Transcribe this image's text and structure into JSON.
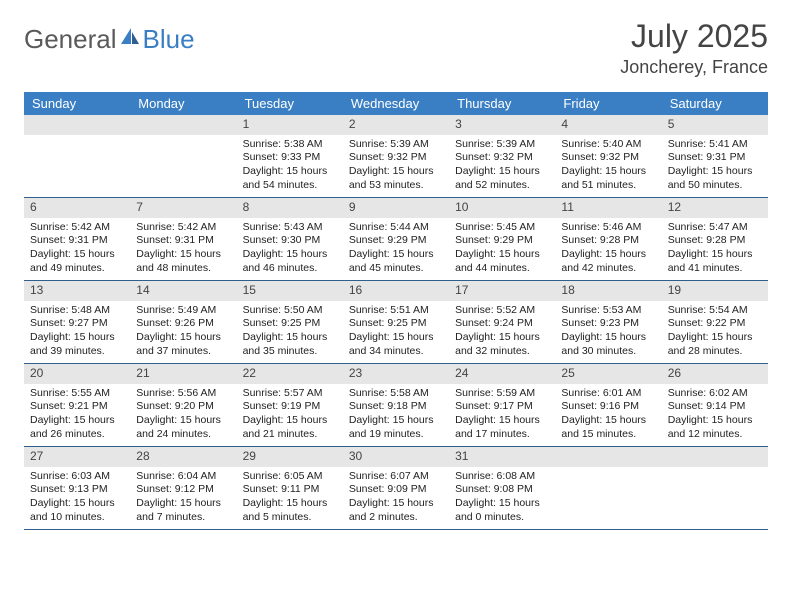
{
  "logo": {
    "text1": "General",
    "text2": "Blue"
  },
  "title": "July 2025",
  "location": "Joncherey, France",
  "colors": {
    "header_bg": "#3a7fc4",
    "row_border": "#2e5f8f",
    "daynum_bg": "#e6e6e6",
    "logo_gray": "#5a5a5a",
    "logo_blue": "#3a7fc4",
    "text": "#222222"
  },
  "day_labels": [
    "Sunday",
    "Monday",
    "Tuesday",
    "Wednesday",
    "Thursday",
    "Friday",
    "Saturday"
  ],
  "weeks": [
    [
      {
        "n": "",
        "sr": "",
        "ss": "",
        "dl": ""
      },
      {
        "n": "",
        "sr": "",
        "ss": "",
        "dl": ""
      },
      {
        "n": "1",
        "sr": "Sunrise: 5:38 AM",
        "ss": "Sunset: 9:33 PM",
        "dl": "Daylight: 15 hours and 54 minutes."
      },
      {
        "n": "2",
        "sr": "Sunrise: 5:39 AM",
        "ss": "Sunset: 9:32 PM",
        "dl": "Daylight: 15 hours and 53 minutes."
      },
      {
        "n": "3",
        "sr": "Sunrise: 5:39 AM",
        "ss": "Sunset: 9:32 PM",
        "dl": "Daylight: 15 hours and 52 minutes."
      },
      {
        "n": "4",
        "sr": "Sunrise: 5:40 AM",
        "ss": "Sunset: 9:32 PM",
        "dl": "Daylight: 15 hours and 51 minutes."
      },
      {
        "n": "5",
        "sr": "Sunrise: 5:41 AM",
        "ss": "Sunset: 9:31 PM",
        "dl": "Daylight: 15 hours and 50 minutes."
      }
    ],
    [
      {
        "n": "6",
        "sr": "Sunrise: 5:42 AM",
        "ss": "Sunset: 9:31 PM",
        "dl": "Daylight: 15 hours and 49 minutes."
      },
      {
        "n": "7",
        "sr": "Sunrise: 5:42 AM",
        "ss": "Sunset: 9:31 PM",
        "dl": "Daylight: 15 hours and 48 minutes."
      },
      {
        "n": "8",
        "sr": "Sunrise: 5:43 AM",
        "ss": "Sunset: 9:30 PM",
        "dl": "Daylight: 15 hours and 46 minutes."
      },
      {
        "n": "9",
        "sr": "Sunrise: 5:44 AM",
        "ss": "Sunset: 9:29 PM",
        "dl": "Daylight: 15 hours and 45 minutes."
      },
      {
        "n": "10",
        "sr": "Sunrise: 5:45 AM",
        "ss": "Sunset: 9:29 PM",
        "dl": "Daylight: 15 hours and 44 minutes."
      },
      {
        "n": "11",
        "sr": "Sunrise: 5:46 AM",
        "ss": "Sunset: 9:28 PM",
        "dl": "Daylight: 15 hours and 42 minutes."
      },
      {
        "n": "12",
        "sr": "Sunrise: 5:47 AM",
        "ss": "Sunset: 9:28 PM",
        "dl": "Daylight: 15 hours and 41 minutes."
      }
    ],
    [
      {
        "n": "13",
        "sr": "Sunrise: 5:48 AM",
        "ss": "Sunset: 9:27 PM",
        "dl": "Daylight: 15 hours and 39 minutes."
      },
      {
        "n": "14",
        "sr": "Sunrise: 5:49 AM",
        "ss": "Sunset: 9:26 PM",
        "dl": "Daylight: 15 hours and 37 minutes."
      },
      {
        "n": "15",
        "sr": "Sunrise: 5:50 AM",
        "ss": "Sunset: 9:25 PM",
        "dl": "Daylight: 15 hours and 35 minutes."
      },
      {
        "n": "16",
        "sr": "Sunrise: 5:51 AM",
        "ss": "Sunset: 9:25 PM",
        "dl": "Daylight: 15 hours and 34 minutes."
      },
      {
        "n": "17",
        "sr": "Sunrise: 5:52 AM",
        "ss": "Sunset: 9:24 PM",
        "dl": "Daylight: 15 hours and 32 minutes."
      },
      {
        "n": "18",
        "sr": "Sunrise: 5:53 AM",
        "ss": "Sunset: 9:23 PM",
        "dl": "Daylight: 15 hours and 30 minutes."
      },
      {
        "n": "19",
        "sr": "Sunrise: 5:54 AM",
        "ss": "Sunset: 9:22 PM",
        "dl": "Daylight: 15 hours and 28 minutes."
      }
    ],
    [
      {
        "n": "20",
        "sr": "Sunrise: 5:55 AM",
        "ss": "Sunset: 9:21 PM",
        "dl": "Daylight: 15 hours and 26 minutes."
      },
      {
        "n": "21",
        "sr": "Sunrise: 5:56 AM",
        "ss": "Sunset: 9:20 PM",
        "dl": "Daylight: 15 hours and 24 minutes."
      },
      {
        "n": "22",
        "sr": "Sunrise: 5:57 AM",
        "ss": "Sunset: 9:19 PM",
        "dl": "Daylight: 15 hours and 21 minutes."
      },
      {
        "n": "23",
        "sr": "Sunrise: 5:58 AM",
        "ss": "Sunset: 9:18 PM",
        "dl": "Daylight: 15 hours and 19 minutes."
      },
      {
        "n": "24",
        "sr": "Sunrise: 5:59 AM",
        "ss": "Sunset: 9:17 PM",
        "dl": "Daylight: 15 hours and 17 minutes."
      },
      {
        "n": "25",
        "sr": "Sunrise: 6:01 AM",
        "ss": "Sunset: 9:16 PM",
        "dl": "Daylight: 15 hours and 15 minutes."
      },
      {
        "n": "26",
        "sr": "Sunrise: 6:02 AM",
        "ss": "Sunset: 9:14 PM",
        "dl": "Daylight: 15 hours and 12 minutes."
      }
    ],
    [
      {
        "n": "27",
        "sr": "Sunrise: 6:03 AM",
        "ss": "Sunset: 9:13 PM",
        "dl": "Daylight: 15 hours and 10 minutes."
      },
      {
        "n": "28",
        "sr": "Sunrise: 6:04 AM",
        "ss": "Sunset: 9:12 PM",
        "dl": "Daylight: 15 hours and 7 minutes."
      },
      {
        "n": "29",
        "sr": "Sunrise: 6:05 AM",
        "ss": "Sunset: 9:11 PM",
        "dl": "Daylight: 15 hours and 5 minutes."
      },
      {
        "n": "30",
        "sr": "Sunrise: 6:07 AM",
        "ss": "Sunset: 9:09 PM",
        "dl": "Daylight: 15 hours and 2 minutes."
      },
      {
        "n": "31",
        "sr": "Sunrise: 6:08 AM",
        "ss": "Sunset: 9:08 PM",
        "dl": "Daylight: 15 hours and 0 minutes."
      },
      {
        "n": "",
        "sr": "",
        "ss": "",
        "dl": ""
      },
      {
        "n": "",
        "sr": "",
        "ss": "",
        "dl": ""
      }
    ]
  ]
}
